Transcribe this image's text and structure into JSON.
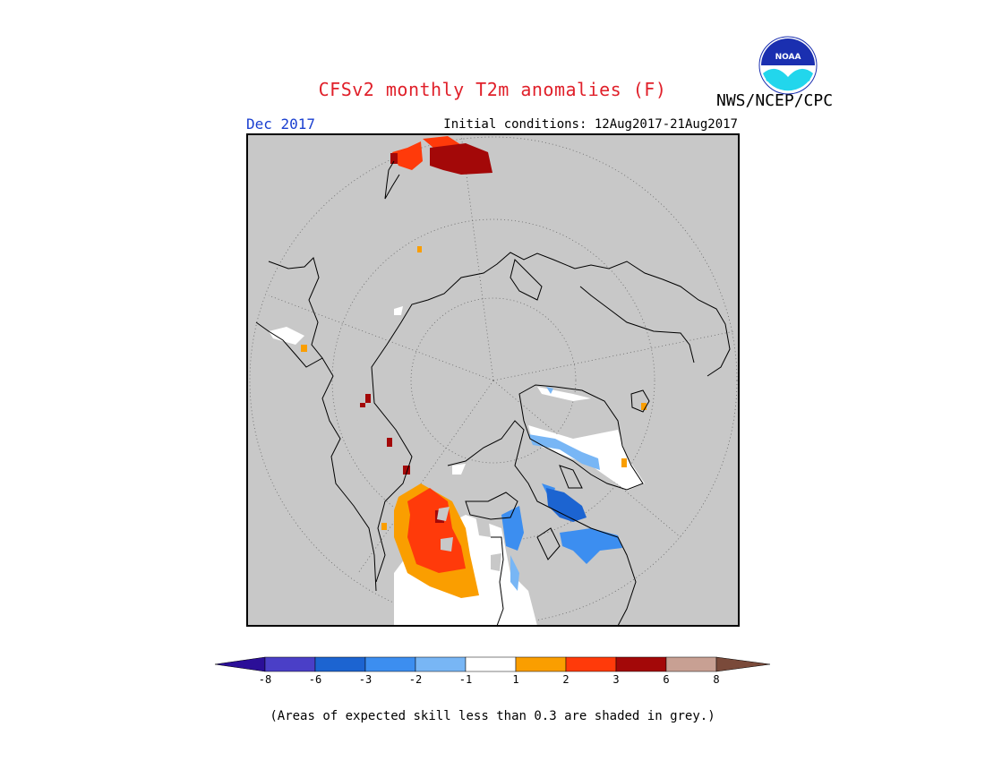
{
  "header": {
    "title": "CFSv2 monthly T2m anomalies (F)",
    "agency": "NWS/NCEP/CPC",
    "logo_text": "NOAA",
    "target_month": "Dec 2017",
    "initial_conditions": "Initial conditions: 12Aug2017-21Aug2017"
  },
  "map": {
    "projection": "north polar stereographic",
    "background_color": "#c8c8c8",
    "grid": "dotted"
  },
  "legend": {
    "tick_labels": [
      "-8",
      "-6",
      "-3",
      "-2",
      "-1",
      "1",
      "2",
      "3",
      "6",
      "8"
    ],
    "colors": [
      "#2b0f98",
      "#4a3fc7",
      "#1c64d1",
      "#3c8ef0",
      "#78b6f5",
      "#ffffff",
      "#fa9e00",
      "#ff3a0a",
      "#a30808",
      "#c8a093",
      "#7a4a3a"
    ]
  },
  "footnote": "(Areas of expected skill less than 0.3 are shaded in grey.)"
}
